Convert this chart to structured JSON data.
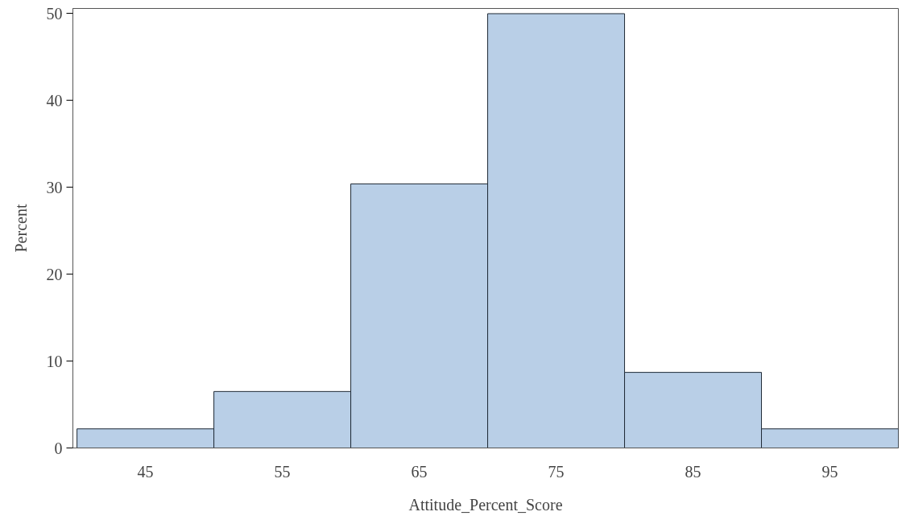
{
  "chart_data": {
    "type": "histogram",
    "xlabel": "Attitude_Percent_Score",
    "ylabel": "Percent",
    "bins": [
      40,
      50,
      60,
      70,
      80,
      90,
      100
    ],
    "values": [
      2.2,
      6.5,
      30.4,
      50,
      8.7,
      2.2
    ],
    "color": "#b9cfe7",
    "xlim": [
      39.7,
      100
    ],
    "ylim": [
      0,
      50.6
    ],
    "xticks": [
      45,
      55,
      65,
      75,
      85,
      95
    ],
    "yticks": [
      0,
      10,
      20,
      30,
      40,
      50
    ],
    "grid": false
  }
}
